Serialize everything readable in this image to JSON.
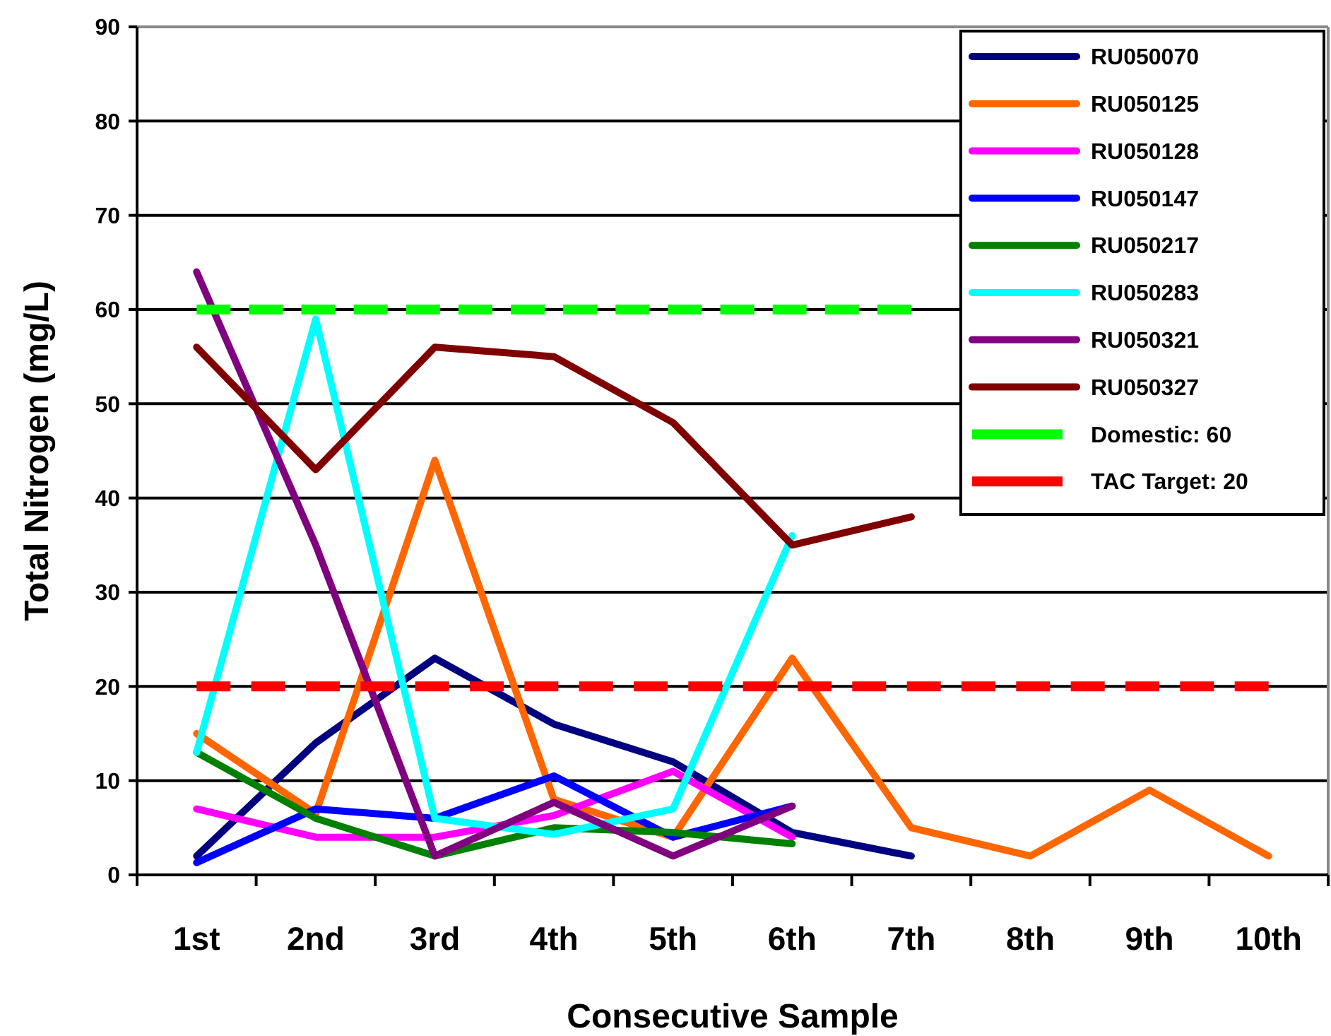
{
  "chart_data": {
    "type": "line",
    "xlabel": "Consecutive Sample",
    "ylabel": "Total Nitrogen (mg/L)",
    "categories": [
      "1st",
      "2nd",
      "3rd",
      "4th",
      "5th",
      "6th",
      "7th",
      "8th",
      "9th",
      "10th"
    ],
    "ylim": [
      0,
      90
    ],
    "yticks": [
      0,
      10,
      20,
      30,
      40,
      50,
      60,
      70,
      80,
      90
    ],
    "grid": "y",
    "legend": "top right",
    "marker": "none",
    "series": [
      {
        "name": "RU050070",
        "color": "#000080",
        "values": [
          2,
          14,
          23,
          16,
          12,
          4.5,
          2,
          null,
          null,
          null
        ]
      },
      {
        "name": "RU050125",
        "color": "#ff6600",
        "values": [
          15,
          6.5,
          44,
          8,
          4,
          23,
          5,
          2,
          9,
          2
        ]
      },
      {
        "name": "RU050128",
        "color": "#ff00ff",
        "values": [
          7,
          4,
          4,
          6.3,
          11,
          4,
          null,
          null,
          null,
          null
        ]
      },
      {
        "name": "RU050147",
        "color": "#0000ff",
        "values": [
          1.3,
          7,
          6,
          10.5,
          4,
          7.3,
          null,
          null,
          null,
          null
        ]
      },
      {
        "name": "RU050217",
        "color": "#008000",
        "values": [
          13,
          6,
          2,
          5,
          4.5,
          3.3,
          null,
          null,
          null,
          null
        ]
      },
      {
        "name": "RU050283",
        "color": "#00ffff",
        "values": [
          13,
          59,
          6,
          4.3,
          7,
          36,
          null,
          null,
          null,
          null
        ]
      },
      {
        "name": "RU050321",
        "color": "#800080",
        "values": [
          64,
          35,
          2,
          7.7,
          2,
          7.3,
          null,
          null,
          null,
          null
        ]
      },
      {
        "name": "RU050327",
        "color": "#800000",
        "values": [
          56,
          43,
          56,
          55,
          48,
          35,
          38,
          null,
          null,
          null
        ]
      },
      {
        "name": "Domestic: 60",
        "color": "#00ff00",
        "line_style": "dashed",
        "values": [
          60,
          60,
          60,
          60,
          60,
          60,
          60,
          null,
          null,
          null
        ]
      },
      {
        "name": "TAC Target: 20",
        "color": "#ff0000",
        "line_style": "dashed",
        "values": [
          20,
          20,
          20,
          20,
          20,
          20,
          20,
          20,
          20,
          20
        ]
      }
    ]
  }
}
